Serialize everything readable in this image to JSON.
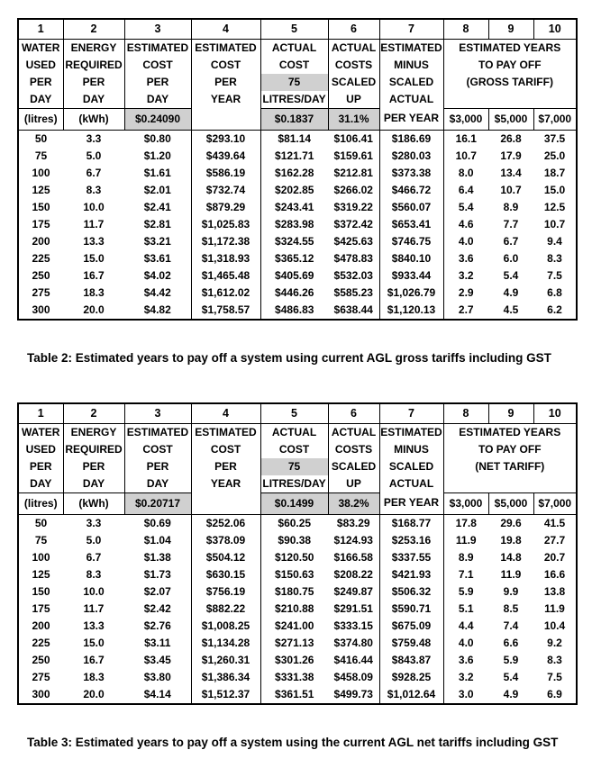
{
  "colors": {
    "background": "#ffffff",
    "border": "#000000",
    "text": "#000000",
    "shaded_cell": "#d0d0d0"
  },
  "tables": [
    {
      "caption": "Table 2: Estimated years to pay off a system using current AGL gross tariffs including GST",
      "column_numbers": [
        "1",
        "2",
        "3",
        "4",
        "5",
        "6",
        "7",
        "8",
        "9",
        "10"
      ],
      "header": {
        "water_used": [
          "WATER",
          "USED",
          "PER",
          "DAY"
        ],
        "energy_required": [
          "ENERGY",
          "REQUIRED",
          "PER",
          "DAY"
        ],
        "estimated_cost_per_day": [
          "ESTIMATED",
          "COST",
          "PER",
          "DAY"
        ],
        "estimated_cost_per_year": [
          "ESTIMATED",
          "COST",
          "PER",
          "YEAR",
          ""
        ],
        "actual_cost": [
          "ACTUAL",
          "COST",
          "75",
          "LITRES/DAY"
        ],
        "actual_costs_scaled": [
          "ACTUAL",
          "COSTS",
          "SCALED",
          "UP"
        ],
        "estimated_minus_actual": [
          "ESTIMATED",
          "MINUS",
          "SCALED",
          "ACTUAL",
          "PER YEAR"
        ],
        "payoff": [
          "ESTIMATED YEARS",
          "TO PAY OFF",
          "(GROSS TARIFF)"
        ]
      },
      "units": {
        "litres": "(litres)",
        "kwh": "(kWh)",
        "estimated_rate": "$0.24090",
        "actual_cost_value": "$0.1837",
        "scaled_up_percent": "31.1%",
        "price_1": "$3,000",
        "price_2": "$5,000",
        "price_3": "$7,000"
      },
      "rows": [
        [
          "50",
          "3.3",
          "$0.80",
          "$293.10",
          "$81.14",
          "$106.41",
          "$186.69",
          "16.1",
          "26.8",
          "37.5"
        ],
        [
          "75",
          "5.0",
          "$1.20",
          "$439.64",
          "$121.71",
          "$159.61",
          "$280.03",
          "10.7",
          "17.9",
          "25.0"
        ],
        [
          "100",
          "6.7",
          "$1.61",
          "$586.19",
          "$162.28",
          "$212.81",
          "$373.38",
          "8.0",
          "13.4",
          "18.7"
        ],
        [
          "125",
          "8.3",
          "$2.01",
          "$732.74",
          "$202.85",
          "$266.02",
          "$466.72",
          "6.4",
          "10.7",
          "15.0"
        ],
        [
          "150",
          "10.0",
          "$2.41",
          "$879.29",
          "$243.41",
          "$319.22",
          "$560.07",
          "5.4",
          "8.9",
          "12.5"
        ],
        [
          "175",
          "11.7",
          "$2.81",
          "$1,025.83",
          "$283.98",
          "$372.42",
          "$653.41",
          "4.6",
          "7.7",
          "10.7"
        ],
        [
          "200",
          "13.3",
          "$3.21",
          "$1,172.38",
          "$324.55",
          "$425.63",
          "$746.75",
          "4.0",
          "6.7",
          "9.4"
        ],
        [
          "225",
          "15.0",
          "$3.61",
          "$1,318.93",
          "$365.12",
          "$478.83",
          "$840.10",
          "3.6",
          "6.0",
          "8.3"
        ],
        [
          "250",
          "16.7",
          "$4.02",
          "$1,465.48",
          "$405.69",
          "$532.03",
          "$933.44",
          "3.2",
          "5.4",
          "7.5"
        ],
        [
          "275",
          "18.3",
          "$4.42",
          "$1,612.02",
          "$446.26",
          "$585.23",
          "$1,026.79",
          "2.9",
          "4.9",
          "6.8"
        ],
        [
          "300",
          "20.0",
          "$4.82",
          "$1,758.57",
          "$486.83",
          "$638.44",
          "$1,120.13",
          "2.7",
          "4.5",
          "6.2"
        ]
      ]
    },
    {
      "caption": "Table 3: Estimated years to pay off a system using the current AGL net tariffs including GST",
      "column_numbers": [
        "1",
        "2",
        "3",
        "4",
        "5",
        "6",
        "7",
        "8",
        "9",
        "10"
      ],
      "header": {
        "water_used": [
          "WATER",
          "USED",
          "PER",
          "DAY"
        ],
        "energy_required": [
          "ENERGY",
          "REQUIRED",
          "PER",
          "DAY"
        ],
        "estimated_cost_per_day": [
          "ESTIMATED",
          "COST",
          "PER",
          "DAY"
        ],
        "estimated_cost_per_year": [
          "ESTIMATED",
          "COST",
          "PER",
          "YEAR",
          ""
        ],
        "actual_cost": [
          "ACTUAL",
          "COST",
          "75",
          "LITRES/DAY"
        ],
        "actual_costs_scaled": [
          "ACTUAL",
          "COSTS",
          "SCALED",
          "UP"
        ],
        "estimated_minus_actual": [
          "ESTIMATED",
          "MINUS",
          "SCALED",
          "ACTUAL",
          "PER YEAR"
        ],
        "payoff": [
          "ESTIMATED YEARS",
          "TO PAY OFF",
          "(NET TARIFF)"
        ]
      },
      "units": {
        "litres": "(litres)",
        "kwh": "(kWh)",
        "estimated_rate": "$0.20717",
        "actual_cost_value": "$0.1499",
        "scaled_up_percent": "38.2%",
        "price_1": "$3,000",
        "price_2": "$5,000",
        "price_3": "$7,000"
      },
      "rows": [
        [
          "50",
          "3.3",
          "$0.69",
          "$252.06",
          "$60.25",
          "$83.29",
          "$168.77",
          "17.8",
          "29.6",
          "41.5"
        ],
        [
          "75",
          "5.0",
          "$1.04",
          "$378.09",
          "$90.38",
          "$124.93",
          "$253.16",
          "11.9",
          "19.8",
          "27.7"
        ],
        [
          "100",
          "6.7",
          "$1.38",
          "$504.12",
          "$120.50",
          "$166.58",
          "$337.55",
          "8.9",
          "14.8",
          "20.7"
        ],
        [
          "125",
          "8.3",
          "$1.73",
          "$630.15",
          "$150.63",
          "$208.22",
          "$421.93",
          "7.1",
          "11.9",
          "16.6"
        ],
        [
          "150",
          "10.0",
          "$2.07",
          "$756.19",
          "$180.75",
          "$249.87",
          "$506.32",
          "5.9",
          "9.9",
          "13.8"
        ],
        [
          "175",
          "11.7",
          "$2.42",
          "$882.22",
          "$210.88",
          "$291.51",
          "$590.71",
          "5.1",
          "8.5",
          "11.9"
        ],
        [
          "200",
          "13.3",
          "$2.76",
          "$1,008.25",
          "$241.00",
          "$333.15",
          "$675.09",
          "4.4",
          "7.4",
          "10.4"
        ],
        [
          "225",
          "15.0",
          "$3.11",
          "$1,134.28",
          "$271.13",
          "$374.80",
          "$759.48",
          "4.0",
          "6.6",
          "9.2"
        ],
        [
          "250",
          "16.7",
          "$3.45",
          "$1,260.31",
          "$301.26",
          "$416.44",
          "$843.87",
          "3.6",
          "5.9",
          "8.3"
        ],
        [
          "275",
          "18.3",
          "$3.80",
          "$1,386.34",
          "$331.38",
          "$458.09",
          "$928.25",
          "3.2",
          "5.4",
          "7.5"
        ],
        [
          "300",
          "20.0",
          "$4.14",
          "$1,512.37",
          "$361.51",
          "$499.73",
          "$1,012.64",
          "3.0",
          "4.9",
          "6.9"
        ]
      ]
    }
  ]
}
